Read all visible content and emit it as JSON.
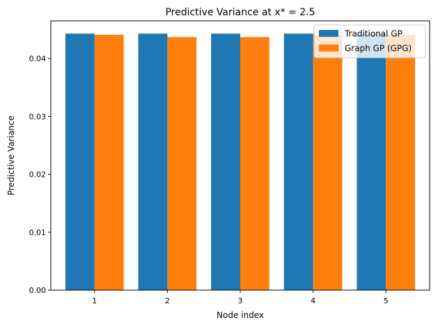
{
  "chart_data": {
    "type": "bar",
    "title": "Predictive Variance at x* = 2.5",
    "xlabel": "Node index",
    "ylabel": "Predictive Variance",
    "categories": [
      "1",
      "2",
      "3",
      "4",
      "5"
    ],
    "series": [
      {
        "name": "Traditional GP",
        "color": "#1f77b4",
        "values": [
          0.0443,
          0.0443,
          0.0443,
          0.0443,
          0.0443
        ]
      },
      {
        "name": "Graph GP (GPG)",
        "color": "#ff7f0e",
        "values": [
          0.0441,
          0.0437,
          0.0437,
          0.0441,
          0.0441
        ]
      }
    ],
    "ylim": [
      0,
      0.0465
    ],
    "yticks": [
      "0.00",
      "0.01",
      "0.02",
      "0.03",
      "0.04"
    ],
    "grid": false,
    "legend_position": "top-right"
  }
}
